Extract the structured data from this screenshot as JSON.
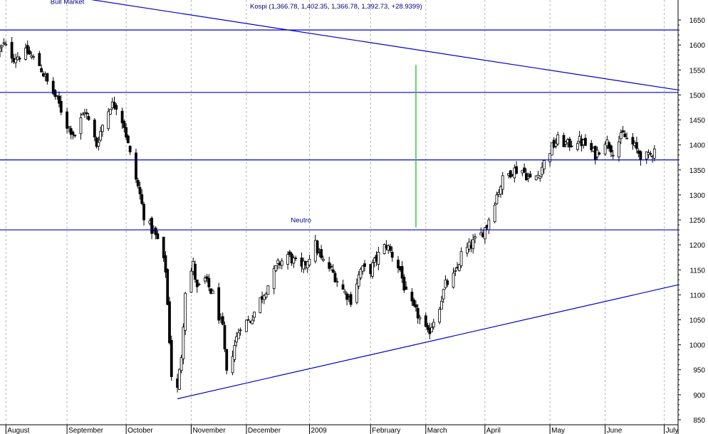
{
  "chart_data": {
    "type": "candlestick",
    "title": "Kospi (1,366.78, 1,402.35, 1,366.78, 1,392.73, +28.9399)",
    "xlabel": "",
    "ylabel": "",
    "ylim": [
      840,
      1690
    ],
    "yticks": [
      850,
      900,
      950,
      1000,
      1050,
      1100,
      1150,
      1200,
      1250,
      1300,
      1350,
      1400,
      1450,
      1500,
      1550,
      1600,
      1650
    ],
    "month_labels": [
      "August",
      "September",
      "October",
      "November",
      "December",
      "2009",
      "February",
      "March",
      "April",
      "May",
      "June",
      "July"
    ],
    "month_starts": [
      "2008-08-01",
      "2008-09-01",
      "2008-10-01",
      "2008-11-03",
      "2008-12-01",
      "2009-01-02",
      "2009-02-02",
      "2009-03-02",
      "2009-04-01",
      "2009-05-04",
      "2009-06-01",
      "2009-07-01"
    ],
    "x_range": [
      "2008-07-29",
      "2009-07-08"
    ],
    "grid": {
      "vertical": true,
      "horizontal": false,
      "style": "dashed"
    },
    "y_axis_position": "right",
    "colors": {
      "up": "#ffffff",
      "down": "#000000",
      "trendline": "#0000cc",
      "marker": "#33cc33"
    },
    "horizontal_lines": [
      1630,
      1505,
      1370,
      1230
    ],
    "trendlines": [
      {
        "from": [
          "2008-08-29",
          1700
        ],
        "to": [
          "2009-07-08",
          1510
        ]
      },
      {
        "from": [
          "2008-10-27",
          892
        ],
        "to": [
          "2009-07-08",
          1120
        ]
      }
    ],
    "vertical_markers": [
      {
        "date": "2009-02-25",
        "from": 1235,
        "to": 1560
      }
    ],
    "annotations": [
      {
        "text": "Bull Market",
        "date": "2008-08-29",
        "value": 1682
      },
      {
        "text": "Neutro",
        "date": "2008-12-29",
        "value": 1245
      }
    ],
    "anchors": [
      [
        "2008-07-29",
        1590
      ],
      [
        "2008-07-31",
        1600
      ],
      [
        "2008-08-05",
        1575
      ],
      [
        "2008-08-12",
        1585
      ],
      [
        "2008-08-18",
        1560
      ],
      [
        "2008-08-22",
        1525
      ],
      [
        "2008-08-27",
        1490
      ],
      [
        "2008-09-01",
        1440
      ],
      [
        "2008-09-05",
        1420
      ],
      [
        "2008-09-10",
        1470
      ],
      [
        "2008-09-16",
        1400
      ],
      [
        "2008-09-19",
        1440
      ],
      [
        "2008-09-23",
        1480
      ],
      [
        "2008-09-26",
        1480
      ],
      [
        "2008-09-30",
        1440
      ],
      [
        "2008-10-03",
        1380
      ],
      [
        "2008-10-08",
        1300
      ],
      [
        "2008-10-10",
        1260
      ],
      [
        "2008-10-14",
        1230
      ],
      [
        "2008-10-17",
        1210
      ],
      [
        "2008-10-21",
        1150
      ],
      [
        "2008-10-23",
        1010
      ],
      [
        "2008-10-24",
        940
      ],
      [
        "2008-10-27",
        910
      ],
      [
        "2008-10-29",
        980
      ],
      [
        "2008-10-31",
        1110
      ],
      [
        "2008-11-04",
        1160
      ],
      [
        "2008-11-06",
        1110
      ],
      [
        "2008-11-10",
        1130
      ],
      [
        "2008-11-14",
        1100
      ],
      [
        "2008-11-19",
        1030
      ],
      [
        "2008-11-21",
        940
      ],
      [
        "2008-11-25",
        1000
      ],
      [
        "2008-11-28",
        1040
      ],
      [
        "2008-12-03",
        1050
      ],
      [
        "2008-12-08",
        1090
      ],
      [
        "2008-12-12",
        1120
      ],
      [
        "2008-12-17",
        1160
      ],
      [
        "2008-12-22",
        1180
      ],
      [
        "2008-12-29",
        1150
      ],
      [
        "2009-01-05",
        1200
      ],
      [
        "2009-01-08",
        1170
      ],
      [
        "2009-01-13",
        1150
      ],
      [
        "2009-01-19",
        1110
      ],
      [
        "2009-01-23",
        1090
      ],
      [
        "2009-01-28",
        1150
      ],
      [
        "2009-02-02",
        1150
      ],
      [
        "2009-02-06",
        1180
      ],
      [
        "2009-02-10",
        1200
      ],
      [
        "2009-02-13",
        1180
      ],
      [
        "2009-02-17",
        1150
      ],
      [
        "2009-02-20",
        1100
      ],
      [
        "2009-02-24",
        1070
      ],
      [
        "2009-02-26",
        1060
      ],
      [
        "2009-03-03",
        1020
      ],
      [
        "2009-03-05",
        1040
      ],
      [
        "2009-03-09",
        1080
      ],
      [
        "2009-03-12",
        1120
      ],
      [
        "2009-03-17",
        1140
      ],
      [
        "2009-03-20",
        1180
      ],
      [
        "2009-03-25",
        1200
      ],
      [
        "2009-03-30",
        1220
      ],
      [
        "2009-04-02",
        1240
      ],
      [
        "2009-04-06",
        1290
      ],
      [
        "2009-04-10",
        1330
      ],
      [
        "2009-04-15",
        1350
      ],
      [
        "2009-04-20",
        1350
      ],
      [
        "2009-04-24",
        1330
      ],
      [
        "2009-04-28",
        1340
      ],
      [
        "2009-05-04",
        1390
      ],
      [
        "2009-05-08",
        1410
      ],
      [
        "2009-05-13",
        1400
      ],
      [
        "2009-05-18",
        1410
      ],
      [
        "2009-05-22",
        1400
      ],
      [
        "2009-05-27",
        1380
      ],
      [
        "2009-06-01",
        1410
      ],
      [
        "2009-06-05",
        1390
      ],
      [
        "2009-06-10",
        1420
      ],
      [
        "2009-06-15",
        1400
      ],
      [
        "2009-06-19",
        1380
      ],
      [
        "2009-06-23",
        1375
      ],
      [
        "2009-06-26",
        1392
      ]
    ]
  }
}
